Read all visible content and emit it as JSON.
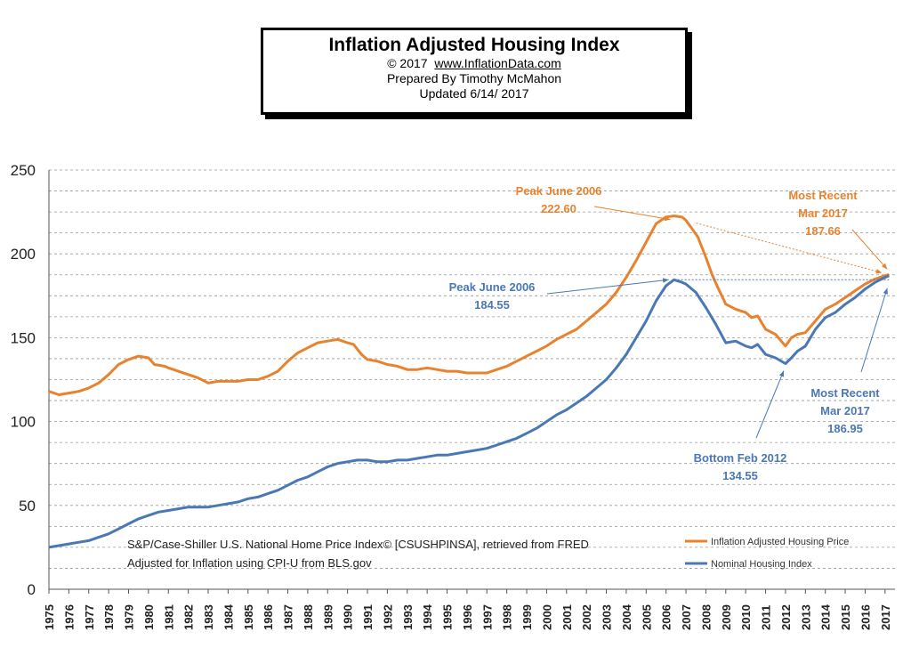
{
  "header": {
    "title": "Inflation Adjusted Housing Index",
    "copyright_prefix": "© 2017",
    "url": "www.InflationData.com",
    "prepared_by": "Prepared By Timothy McMahon",
    "updated": "Updated 6/14/ 2017"
  },
  "chart_data": {
    "type": "line",
    "title": "Inflation Adjusted Housing Index",
    "xlabel": "",
    "ylabel": "",
    "ylim": [
      0,
      250
    ],
    "xlim": [
      1975,
      2017.5
    ],
    "y_ticks": [
      0,
      50,
      100,
      150,
      200,
      250
    ],
    "x_tick_labels": [
      "1975",
      "1976",
      "1977",
      "1978",
      "1979",
      "1980",
      "1981",
      "1982",
      "1983",
      "1984",
      "1985",
      "1986",
      "1987",
      "1988",
      "1989",
      "1990",
      "1991",
      "1992",
      "1993",
      "1994",
      "1995",
      "1996",
      "1997",
      "1998",
      "1999",
      "2000",
      "2001",
      "2002",
      "2003",
      "2004",
      "2005",
      "2006",
      "2007",
      "2008",
      "2009",
      "2010",
      "2011",
      "2012",
      "2013",
      "2014",
      "2015",
      "2016",
      "2017"
    ],
    "grid": "horizontal dashed",
    "legend_placement": "bottom-right",
    "series": [
      {
        "name": "Inflation Adjusted Housing Price",
        "color": "#e8822e",
        "points": [
          [
            1975,
            118
          ],
          [
            1975.5,
            116
          ],
          [
            1976,
            117
          ],
          [
            1976.5,
            118
          ],
          [
            1977,
            120
          ],
          [
            1977.5,
            123
          ],
          [
            1978,
            128
          ],
          [
            1978.5,
            134
          ],
          [
            1979,
            137
          ],
          [
            1979.5,
            139
          ],
          [
            1980,
            138
          ],
          [
            1980.3,
            134
          ],
          [
            1980.8,
            133
          ],
          [
            1981,
            132
          ],
          [
            1981.5,
            130
          ],
          [
            1982,
            128
          ],
          [
            1982.5,
            126
          ],
          [
            1983,
            123
          ],
          [
            1983.5,
            124
          ],
          [
            1984,
            124
          ],
          [
            1984.5,
            124
          ],
          [
            1985,
            125
          ],
          [
            1985.5,
            125
          ],
          [
            1986,
            127
          ],
          [
            1986.5,
            130
          ],
          [
            1987,
            136
          ],
          [
            1987.5,
            141
          ],
          [
            1988,
            144
          ],
          [
            1988.5,
            147
          ],
          [
            1989,
            148
          ],
          [
            1989.5,
            149
          ],
          [
            1990,
            147
          ],
          [
            1990.3,
            146
          ],
          [
            1990.7,
            140
          ],
          [
            1991,
            137
          ],
          [
            1991.5,
            136
          ],
          [
            1992,
            134
          ],
          [
            1992.5,
            133
          ],
          [
            1993,
            131
          ],
          [
            1993.5,
            131
          ],
          [
            1994,
            132
          ],
          [
            1994.5,
            131
          ],
          [
            1995,
            130
          ],
          [
            1995.5,
            130
          ],
          [
            1996,
            129
          ],
          [
            1996.5,
            129
          ],
          [
            1997,
            129
          ],
          [
            1997.5,
            131
          ],
          [
            1998,
            133
          ],
          [
            1998.5,
            136
          ],
          [
            1999,
            139
          ],
          [
            1999.5,
            142
          ],
          [
            2000,
            145
          ],
          [
            2000.5,
            149
          ],
          [
            2001,
            152
          ],
          [
            2001.5,
            155
          ],
          [
            2002,
            160
          ],
          [
            2002.5,
            165
          ],
          [
            2003,
            170
          ],
          [
            2003.5,
            177
          ],
          [
            2004,
            186
          ],
          [
            2004.5,
            196
          ],
          [
            2005,
            207
          ],
          [
            2005.5,
            218
          ],
          [
            2006,
            222
          ],
          [
            2006.4,
            222.6
          ],
          [
            2006.8,
            222
          ],
          [
            2007,
            220
          ],
          [
            2007.3,
            215
          ],
          [
            2007.6,
            210
          ],
          [
            2008,
            198
          ],
          [
            2008.3,
            188
          ],
          [
            2008.6,
            180
          ],
          [
            2009,
            170
          ],
          [
            2009.5,
            167
          ],
          [
            2010,
            165
          ],
          [
            2010.3,
            162
          ],
          [
            2010.6,
            163
          ],
          [
            2011,
            155
          ],
          [
            2011.5,
            152
          ],
          [
            2012,
            145
          ],
          [
            2012.3,
            150
          ],
          [
            2012.6,
            152
          ],
          [
            2013,
            153
          ],
          [
            2013.5,
            160
          ],
          [
            2014,
            167
          ],
          [
            2014.5,
            170
          ],
          [
            2015,
            174
          ],
          [
            2015.5,
            178
          ],
          [
            2016,
            182
          ],
          [
            2016.5,
            185
          ],
          [
            2017,
            187
          ],
          [
            2017.2,
            187.66
          ]
        ]
      },
      {
        "name": "Nominal Housing Index",
        "color": "#4a78b5",
        "points": [
          [
            1975,
            25
          ],
          [
            1975.5,
            26
          ],
          [
            1976,
            27
          ],
          [
            1976.5,
            28
          ],
          [
            1977,
            29
          ],
          [
            1977.5,
            31
          ],
          [
            1978,
            33
          ],
          [
            1978.5,
            36
          ],
          [
            1979,
            39
          ],
          [
            1979.5,
            42
          ],
          [
            1980,
            44
          ],
          [
            1980.5,
            46
          ],
          [
            1981,
            47
          ],
          [
            1981.5,
            48
          ],
          [
            1982,
            49
          ],
          [
            1982.5,
            49
          ],
          [
            1983,
            49
          ],
          [
            1983.5,
            50
          ],
          [
            1984,
            51
          ],
          [
            1984.5,
            52
          ],
          [
            1985,
            54
          ],
          [
            1985.5,
            55
          ],
          [
            1986,
            57
          ],
          [
            1986.5,
            59
          ],
          [
            1987,
            62
          ],
          [
            1987.5,
            65
          ],
          [
            1988,
            67
          ],
          [
            1988.5,
            70
          ],
          [
            1989,
            73
          ],
          [
            1989.5,
            75
          ],
          [
            1990,
            76
          ],
          [
            1990.5,
            77
          ],
          [
            1991,
            77
          ],
          [
            1991.5,
            76
          ],
          [
            1992,
            76
          ],
          [
            1992.5,
            77
          ],
          [
            1993,
            77
          ],
          [
            1993.5,
            78
          ],
          [
            1994,
            79
          ],
          [
            1994.5,
            80
          ],
          [
            1995,
            80
          ],
          [
            1995.5,
            81
          ],
          [
            1996,
            82
          ],
          [
            1996.5,
            83
          ],
          [
            1997,
            84
          ],
          [
            1997.5,
            86
          ],
          [
            1998,
            88
          ],
          [
            1998.5,
            90
          ],
          [
            1999,
            93
          ],
          [
            1999.5,
            96
          ],
          [
            2000,
            100
          ],
          [
            2000.5,
            104
          ],
          [
            2001,
            107
          ],
          [
            2001.5,
            111
          ],
          [
            2002,
            115
          ],
          [
            2002.5,
            120
          ],
          [
            2003,
            125
          ],
          [
            2003.5,
            132
          ],
          [
            2004,
            140
          ],
          [
            2004.5,
            150
          ],
          [
            2005,
            160
          ],
          [
            2005.5,
            172
          ],
          [
            2006,
            181
          ],
          [
            2006.4,
            184.55
          ],
          [
            2006.8,
            183
          ],
          [
            2007,
            182
          ],
          [
            2007.5,
            177
          ],
          [
            2008,
            168
          ],
          [
            2008.5,
            158
          ],
          [
            2009,
            147
          ],
          [
            2009.5,
            148
          ],
          [
            2010,
            145
          ],
          [
            2010.3,
            144
          ],
          [
            2010.6,
            146
          ],
          [
            2011,
            140
          ],
          [
            2011.5,
            138
          ],
          [
            2012,
            134.55
          ],
          [
            2012.3,
            138
          ],
          [
            2012.6,
            142
          ],
          [
            2013,
            145
          ],
          [
            2013.5,
            155
          ],
          [
            2014,
            162
          ],
          [
            2014.5,
            165
          ],
          [
            2015,
            170
          ],
          [
            2015.5,
            174
          ],
          [
            2016,
            179
          ],
          [
            2016.5,
            183
          ],
          [
            2017,
            186
          ],
          [
            2017.2,
            186.95
          ]
        ]
      }
    ],
    "annotations": {
      "peak_orange_label": "Peak June 2006",
      "peak_orange_value": "222.60",
      "recent_orange_label_1": "Most Recent",
      "recent_orange_label_2": "Mar 2017",
      "recent_orange_value": "187.66",
      "peak_blue_label": "Peak June 2006",
      "peak_blue_value": "184.55",
      "recent_blue_label_1": "Most Recent",
      "recent_blue_label_2": "Mar 2017",
      "recent_blue_value": "186.95",
      "bottom_blue_label": "Bottom Feb 2012",
      "bottom_blue_value": "134.55"
    },
    "source_line_1": "S&P/Case-Shiller U.S. National Home Price Index© [CSUSHPINSA], retrieved from FRED",
    "source_line_2": "Adjusted for Inflation using CPI-U from BLS.gov"
  }
}
